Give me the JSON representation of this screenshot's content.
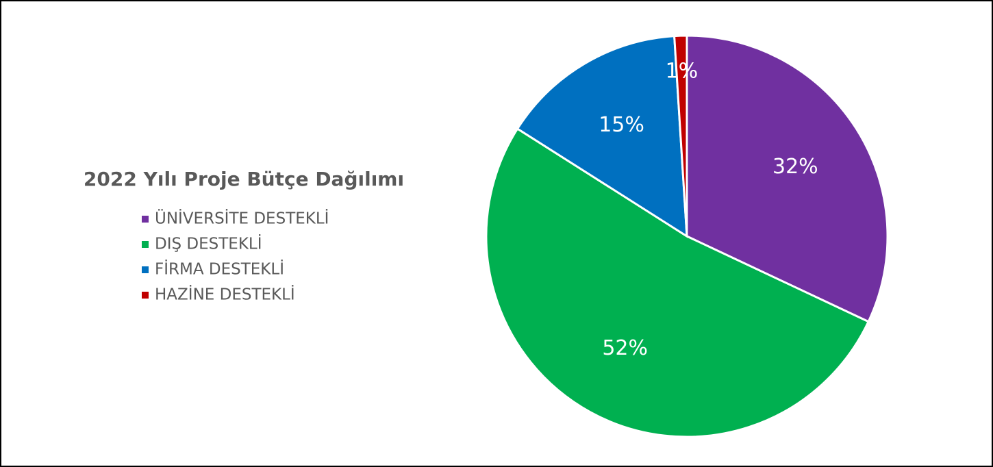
{
  "chart_data": {
    "type": "pie",
    "title": "2022 Yılı Proje Bütçe Dağılımı",
    "categories": [
      "ÜNİVERSİTE DESTEKLİ",
      "DIŞ DESTEKLİ",
      "FİRMA DESTEKLİ",
      "HAZİNE DESTEKLİ"
    ],
    "values": [
      32,
      52,
      15,
      1
    ],
    "value_labels": [
      "32%",
      "52%",
      "15%",
      "1%"
    ],
    "colors": [
      "#7030a0",
      "#00b050",
      "#0070c0",
      "#c00000"
    ],
    "legend": "left"
  }
}
